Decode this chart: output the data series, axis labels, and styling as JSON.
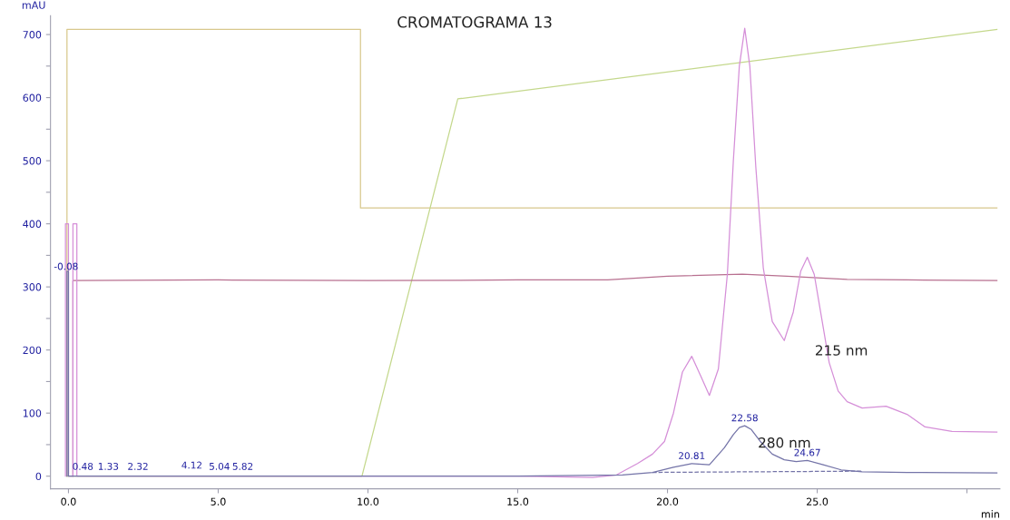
{
  "chart_data": {
    "type": "line",
    "title": "CROMATOGRAMA 13",
    "xlabel": "min",
    "ylabel": "mAU",
    "xlim": [
      -0.6,
      31.1
    ],
    "ylim": [
      -20,
      730
    ],
    "xticks": [
      {
        "value": 0,
        "label": "0.0"
      },
      {
        "value": 5,
        "label": "5.0"
      },
      {
        "value": 10,
        "label": "10.0"
      },
      {
        "value": 15,
        "label": "15.0"
      },
      {
        "value": 20,
        "label": "20.0"
      },
      {
        "value": 25,
        "label": "25.0"
      },
      {
        "value": 30,
        "label": null
      }
    ],
    "yticks": [
      0,
      {
        "value": 50,
        "label": null
      },
      100,
      {
        "value": 150,
        "label": null
      },
      200,
      {
        "value": 250,
        "label": null
      },
      300,
      {
        "value": 350,
        "label": null
      },
      400,
      {
        "value": 450,
        "label": null
      },
      500,
      {
        "value": 550,
        "label": null
      },
      600,
      {
        "value": 650,
        "label": null
      },
      700
    ],
    "grid": false,
    "legend": false,
    "marker": "none",
    "line_style": "solid",
    "series": [
      {
        "color": "#d8c88c",
        "x": [
          -0.05,
          -0.05,
          9.75,
          9.75,
          31.0
        ],
        "values": [
          0,
          708,
          708,
          425,
          425
        ]
      },
      {
        "color": "#c4d88c",
        "x": [
          -0.05,
          9.8,
          13.0,
          31.0
        ],
        "values": [
          0,
          0,
          598,
          708
        ]
      },
      {
        "color": "#b87090",
        "x": [
          0.15,
          0.15,
          5,
          10,
          15,
          18,
          20,
          22.5,
          24,
          26,
          28,
          31.0
        ],
        "values": [
          0,
          310,
          311,
          310,
          311,
          311,
          317,
          320,
          317,
          312,
          311,
          310
        ]
      },
      {
        "name": "215 nm",
        "color": "#d58fd8",
        "x": [
          -0.1,
          -0.1,
          0.0,
          0.0,
          0.15,
          0.15,
          0.28,
          0.28,
          5,
          10,
          15,
          17.5,
          18.3,
          19.0,
          19.5,
          19.9,
          20.2,
          20.5,
          20.81,
          21.1,
          21.4,
          21.7,
          22.0,
          22.2,
          22.4,
          22.58,
          22.75,
          22.95,
          23.2,
          23.5,
          23.9,
          24.2,
          24.45,
          24.67,
          24.9,
          25.15,
          25.4,
          25.7,
          26.0,
          26.5,
          27.3,
          28.0,
          28.6,
          29.5,
          31.0
        ],
        "values": [
          0,
          400,
          400,
          0,
          0,
          400,
          400,
          0,
          0,
          0,
          0,
          -2,
          2,
          20,
          35,
          55,
          100,
          165,
          190,
          160,
          128,
          170,
          320,
          500,
          650,
          710,
          650,
          490,
          330,
          245,
          215,
          260,
          325,
          347,
          320,
          250,
          180,
          135,
          118,
          108,
          111,
          98,
          78,
          71,
          70
        ]
      },
      {
        "name": "280 nm",
        "color": "#7474a8",
        "x": [
          -0.05,
          -0.05,
          0.0,
          0.0,
          5,
          10,
          15,
          18.5,
          19.5,
          20.2,
          20.81,
          21.4,
          21.9,
          22.2,
          22.4,
          22.58,
          22.8,
          23.1,
          23.5,
          23.9,
          24.3,
          24.67,
          25.2,
          25.8,
          26.5,
          28,
          31.0
        ],
        "values": [
          0,
          325,
          325,
          0,
          0,
          0,
          0,
          2,
          6,
          14,
          20,
          18,
          45,
          66,
          77,
          80,
          74,
          55,
          35,
          26,
          23,
          25,
          18,
          10,
          7,
          6,
          5
        ]
      },
      {
        "color": "#7474a8",
        "line_style": "dashed",
        "x": [
          19.5,
          26.5
        ],
        "values": [
          6,
          8
        ]
      }
    ],
    "annotations": [
      {
        "text": "-0.08",
        "x": -0.08,
        "y": 320
      },
      {
        "text": "0.48",
        "x": 0.48,
        "y": 3
      },
      {
        "text": "1.33",
        "x": 1.33,
        "y": 3
      },
      {
        "text": "2.32",
        "x": 2.32,
        "y": 3
      },
      {
        "text": "4.12",
        "x": 4.12,
        "y": 5
      },
      {
        "text": "5.04",
        "x": 5.04,
        "y": 3
      },
      {
        "text": "5.82",
        "x": 5.82,
        "y": 3
      },
      {
        "text": "20.81",
        "x": 20.81,
        "y": 20
      },
      {
        "text": "22.58",
        "x": 22.58,
        "y": 80
      },
      {
        "text": "24.67",
        "x": 24.67,
        "y": 25
      }
    ]
  }
}
